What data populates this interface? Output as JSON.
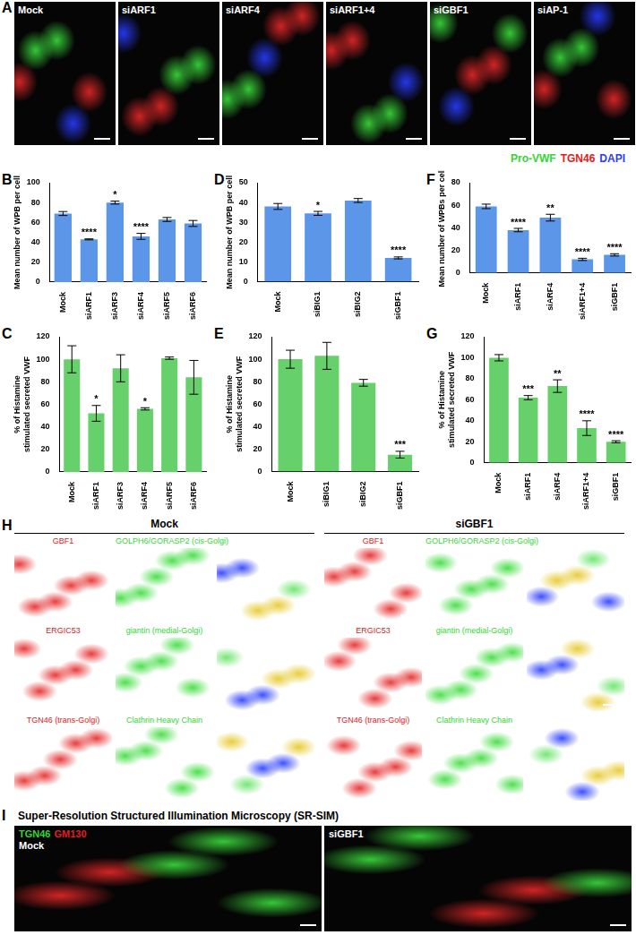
{
  "figure": {
    "A": {
      "letter": "A",
      "images": [
        "Mock",
        "siARF1",
        "siARF4",
        "siARF1+4",
        "siGBF1",
        "siAP-1"
      ],
      "legend": [
        {
          "text": "Pro-VWF",
          "color": "#33d633"
        },
        {
          "text": "TGN46",
          "color": "#e02020"
        },
        {
          "text": "DAPI",
          "color": "#2a3cff"
        }
      ]
    },
    "H": {
      "letter": "H",
      "conditions": [
        "Mock",
        "siGBF1"
      ],
      "rows": [
        {
          "red": "GBF1",
          "green": "GOLPH6/GORASP2 (cis-Golgi)"
        },
        {
          "red": "ERGIC53",
          "green": "giantin (medial-Golgi)"
        },
        {
          "red": "TGN46 (trans-Golgi)",
          "green": "Clathrin Heavy Chain"
        }
      ],
      "red_color": "#e02020",
      "green_color": "#33d633"
    },
    "I": {
      "letter": "I",
      "title": "Super-Resolution Structured Illumination Microscopy (SR-SIM)",
      "images": [
        "Mock",
        "siGBF1"
      ],
      "stains": [
        {
          "text": "TGN46",
          "color": "#33d633"
        },
        {
          "text": "GM130",
          "color": "#e02020"
        }
      ]
    }
  },
  "chart_data": [
    {
      "panel": "B",
      "type": "bar",
      "ylabel": "Mean number of WPB per cell",
      "categories": [
        "Mock",
        "siARF1",
        "siARF3",
        "siARF4",
        "siARF5",
        "siARF6"
      ],
      "values": [
        69,
        43,
        80,
        46,
        63,
        59
      ],
      "errors": [
        2,
        0.5,
        1.5,
        3,
        2,
        3
      ],
      "significance": [
        null,
        "****",
        "*",
        "****",
        null,
        null
      ],
      "color": "#5b96e8",
      "ylim": [
        0,
        100
      ],
      "yticks": [
        0,
        20,
        40,
        60,
        80,
        100
      ],
      "grid": false
    },
    {
      "panel": "C",
      "type": "bar",
      "ylabel": "% of Histamine stimulated secreted VWF",
      "categories": [
        "Mock",
        "siARF1",
        "siARF3",
        "siARF4",
        "siARF5",
        "siARF6"
      ],
      "values": [
        100,
        52,
        92,
        56,
        101,
        84
      ],
      "errors": [
        12,
        7,
        12,
        1,
        1,
        15
      ],
      "significance": [
        null,
        "*",
        null,
        "*",
        null,
        null
      ],
      "color": "#66d16a",
      "ylim": [
        0,
        120
      ],
      "yticks": [
        0,
        20,
        40,
        60,
        80,
        100,
        120
      ],
      "grid": false
    },
    {
      "panel": "D",
      "type": "bar",
      "ylabel": "Mean number of WPB per cell",
      "categories": [
        "Mock",
        "siBIG1",
        "siBIG2",
        "siGBF1"
      ],
      "values": [
        38,
        34.5,
        41,
        12
      ],
      "errors": [
        1.5,
        1,
        1,
        0.5
      ],
      "significance": [
        null,
        "*",
        null,
        "****"
      ],
      "color": "#5b96e8",
      "ylim": [
        0,
        50
      ],
      "yticks": [
        0,
        10,
        20,
        30,
        40,
        50
      ],
      "grid": false
    },
    {
      "panel": "E",
      "type": "bar",
      "ylabel": "% of Histamine stimulated secreted VWF",
      "categories": [
        "Mock",
        "siBIG1",
        "siBIG2",
        "siGBF1"
      ],
      "values": [
        100,
        103,
        79,
        15
      ],
      "errors": [
        8,
        12,
        3,
        3
      ],
      "significance": [
        null,
        null,
        null,
        "***"
      ],
      "color": "#66d16a",
      "ylim": [
        0,
        120
      ],
      "yticks": [
        0,
        20,
        40,
        60,
        80,
        100,
        120
      ],
      "grid": false
    },
    {
      "panel": "F",
      "type": "bar",
      "ylabel": "Mean number of WPBs per cell",
      "categories": [
        "Mock",
        "siARF1",
        "siARF4",
        "siARF1+4",
        "siGBF1"
      ],
      "values": [
        59,
        38,
        49,
        12,
        16
      ],
      "errors": [
        2,
        1.5,
        3,
        1,
        1
      ],
      "significance": [
        null,
        "****",
        "**",
        "****",
        "****"
      ],
      "color": "#5b96e8",
      "ylim": [
        0,
        80
      ],
      "yticks": [
        0,
        20,
        40,
        60,
        80
      ],
      "grid": false
    },
    {
      "panel": "G",
      "type": "bar",
      "ylabel": "% of Histamine stimulated secreted VWF",
      "categories": [
        "Mock",
        "siARF1",
        "siARF4",
        "siARF1+4",
        "siGBF1"
      ],
      "values": [
        100,
        62,
        73,
        33,
        20
      ],
      "errors": [
        3,
        2,
        6,
        7,
        1
      ],
      "significance": [
        null,
        "***",
        "**",
        "****",
        "****"
      ],
      "color": "#66d16a",
      "ylim": [
        0,
        120
      ],
      "yticks": [
        0,
        20,
        40,
        60,
        80,
        100,
        120
      ],
      "grid": false
    }
  ]
}
